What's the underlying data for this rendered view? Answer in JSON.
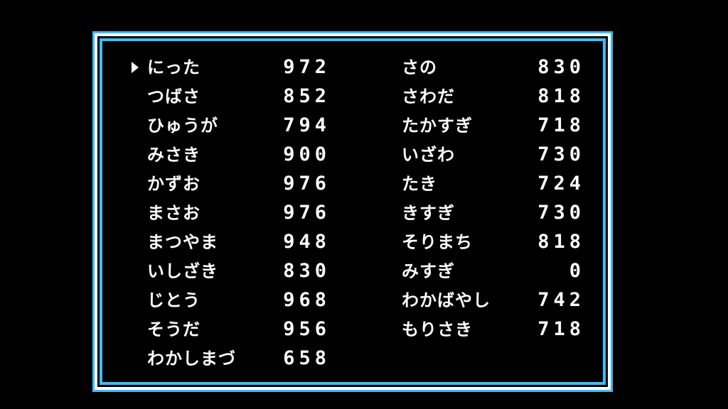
{
  "colors": {
    "border": "#3cbcfc",
    "border_inner": "#fcfcfc",
    "background": "#000000",
    "text": "#fcfcfc"
  },
  "cursor": {
    "icon": "triangle-right-icon",
    "selected_index": 0
  },
  "left_column": [
    {
      "name": "にった",
      "score": "972"
    },
    {
      "name": "つばさ",
      "score": "852"
    },
    {
      "name": "ひゅうが",
      "score": "794"
    },
    {
      "name": "みさき",
      "score": "900"
    },
    {
      "name": "かずお",
      "score": "976"
    },
    {
      "name": "まさお",
      "score": "976"
    },
    {
      "name": "まつやま",
      "score": "948"
    },
    {
      "name": "いしざき",
      "score": "830"
    },
    {
      "name": "じとう",
      "score": "968"
    },
    {
      "name": "そうだ",
      "score": "956"
    },
    {
      "name": "わかしまづ",
      "score": "658"
    }
  ],
  "right_column": [
    {
      "name": "さの",
      "score": "830"
    },
    {
      "name": "さわだ",
      "score": "818"
    },
    {
      "name": "たかすぎ",
      "score": "718"
    },
    {
      "name": "いざわ",
      "score": "730"
    },
    {
      "name": "たき",
      "score": "724"
    },
    {
      "name": "きすぎ",
      "score": "730"
    },
    {
      "name": "そりまち",
      "score": "818"
    },
    {
      "name": "みすぎ",
      "score": "0"
    },
    {
      "name": "わかばやし",
      "score": "742"
    },
    {
      "name": "もりさき",
      "score": "718"
    }
  ]
}
